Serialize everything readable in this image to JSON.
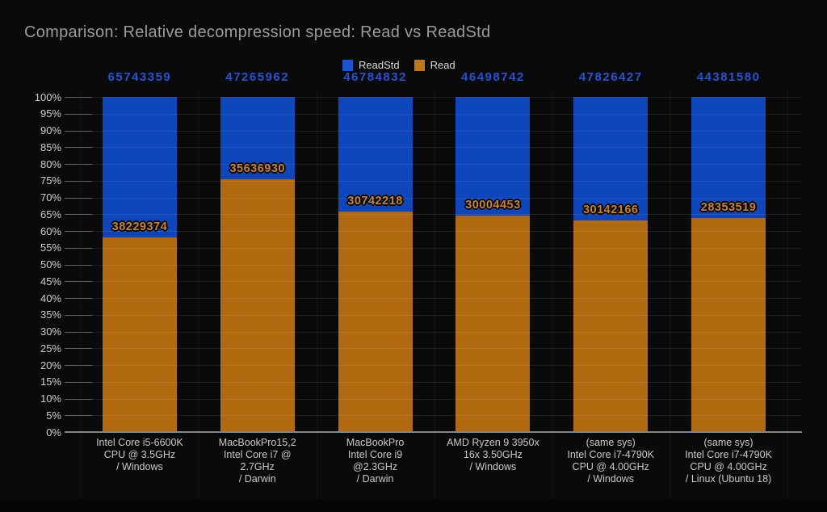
{
  "chart_data": {
    "type": "bar",
    "variant": "stacked-percentage",
    "title": "Comparison: Relative decompression speed: Read vs ReadStd",
    "legend": {
      "position": "top",
      "entries": [
        "ReadStd",
        "Read"
      ]
    },
    "y_axis": {
      "min": 0,
      "max": 100,
      "step": 5,
      "tick_suffix": "%",
      "grid": true
    },
    "x_axis": {
      "categories": [
        [
          "Intel Core i5-6600K",
          "CPU @ 3.5GHz",
          "/ Windows"
        ],
        [
          "MacBookPro15,2",
          "Intel Core i7 @",
          "2.7GHz",
          "/ Darwin"
        ],
        [
          "MacBookPro",
          "Intel Core i9",
          "@2.3GHz",
          "/ Darwin"
        ],
        [
          "AMD Ryzen 9 3950x",
          "16x 3.50GHz",
          "/ Windows"
        ],
        [
          "(same sys)",
          "Intel Core i7-4790K",
          "CPU @ 4.00GHz",
          "/ Windows"
        ],
        [
          "(same sys)",
          "Intel Core i7-4790K",
          "CPU @ 4.00GHz",
          "/ Linux (Ubuntu 18)"
        ]
      ]
    },
    "series": [
      {
        "name": "ReadStd",
        "color": "#0d47bb",
        "legend_swatch_color": "#1a55cf",
        "value_label_color": "#2254d6",
        "values": [
          65743359,
          47265962,
          46784832,
          46498742,
          47826427,
          44381580
        ]
      },
      {
        "name": "Read",
        "color": "#b26a10",
        "legend_swatch_color": "#c07818",
        "value_label_color": "#cf841c",
        "values": [
          38229374,
          35636930,
          30742218,
          30004453,
          30142166,
          28353519
        ]
      }
    ],
    "normalization": "ReadStd bar = 100%; Read segment height = Read / ReadStd",
    "read_share_percent": [
      58.1,
      75.4,
      65.7,
      64.5,
      63.0,
      63.9
    ],
    "colors": {
      "background": "#0a0a0a",
      "footer_background": "#050505",
      "title_text": "#9b9b9b",
      "axis_text": "#cdcdcd",
      "legend_text": "#d8d8d8",
      "gridline": "rgba(255,255,255,0.085)",
      "vertical_gridline": "rgba(255,255,255,0.035)",
      "axis_line": "#858585",
      "tick": "#5f5f5f"
    }
  }
}
